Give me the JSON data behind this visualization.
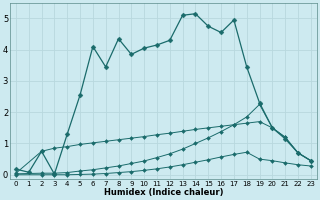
{
  "xlabel": "Humidex (Indice chaleur)",
  "background_color": "#cdeaf0",
  "grid_color": "#b8d8de",
  "line_color": "#1a6b6b",
  "xlim": [
    -0.5,
    23.5
  ],
  "ylim": [
    -0.15,
    5.5
  ],
  "xticks": [
    0,
    1,
    2,
    3,
    4,
    5,
    6,
    7,
    8,
    9,
    10,
    11,
    12,
    13,
    14,
    15,
    16,
    17,
    18,
    19,
    20,
    21,
    22,
    23
  ],
  "yticks": [
    0,
    1,
    2,
    3,
    4,
    5
  ],
  "line1_x": [
    0,
    1,
    2,
    3,
    4,
    5,
    6,
    7,
    8,
    9,
    10,
    11,
    12,
    13,
    14,
    15,
    16,
    17,
    18,
    19,
    20,
    21,
    22,
    23
  ],
  "line1_y": [
    0.18,
    0.08,
    0.75,
    0.02,
    1.3,
    2.55,
    4.1,
    3.45,
    4.35,
    3.85,
    4.05,
    4.15,
    4.3,
    5.1,
    5.15,
    4.75,
    4.55,
    4.95,
    3.45,
    2.3,
    1.5,
    1.15,
    0.7,
    0.45
  ],
  "line2_x": [
    0,
    2,
    3,
    4,
    5,
    6,
    7,
    8,
    9,
    10,
    11,
    12,
    13,
    14,
    15,
    16,
    17,
    18,
    19,
    20,
    21,
    22,
    23
  ],
  "line2_y": [
    0.05,
    0.75,
    0.85,
    0.9,
    0.97,
    1.02,
    1.07,
    1.12,
    1.17,
    1.22,
    1.28,
    1.33,
    1.39,
    1.45,
    1.5,
    1.55,
    1.6,
    1.65,
    1.7,
    1.5,
    1.2,
    0.7,
    0.45
  ],
  "line3_x": [
    0,
    2,
    3,
    4,
    5,
    6,
    7,
    8,
    9,
    10,
    11,
    12,
    13,
    14,
    15,
    16,
    17,
    18,
    19,
    20,
    21,
    22,
    23
  ],
  "line3_y": [
    0.03,
    0.05,
    0.05,
    0.07,
    0.12,
    0.16,
    0.22,
    0.28,
    0.36,
    0.44,
    0.55,
    0.67,
    0.82,
    1.0,
    1.18,
    1.38,
    1.6,
    1.85,
    2.25,
    1.5,
    1.2,
    0.7,
    0.45
  ],
  "line4_x": [
    0,
    2,
    3,
    4,
    5,
    6,
    7,
    8,
    9,
    10,
    11,
    12,
    13,
    14,
    15,
    16,
    17,
    18,
    19,
    20,
    21,
    22,
    23
  ],
  "line4_y": [
    0.0,
    0.0,
    0.0,
    0.0,
    0.01,
    0.02,
    0.04,
    0.07,
    0.1,
    0.14,
    0.19,
    0.25,
    0.32,
    0.4,
    0.48,
    0.57,
    0.65,
    0.72,
    0.5,
    0.45,
    0.38,
    0.32,
    0.28
  ]
}
